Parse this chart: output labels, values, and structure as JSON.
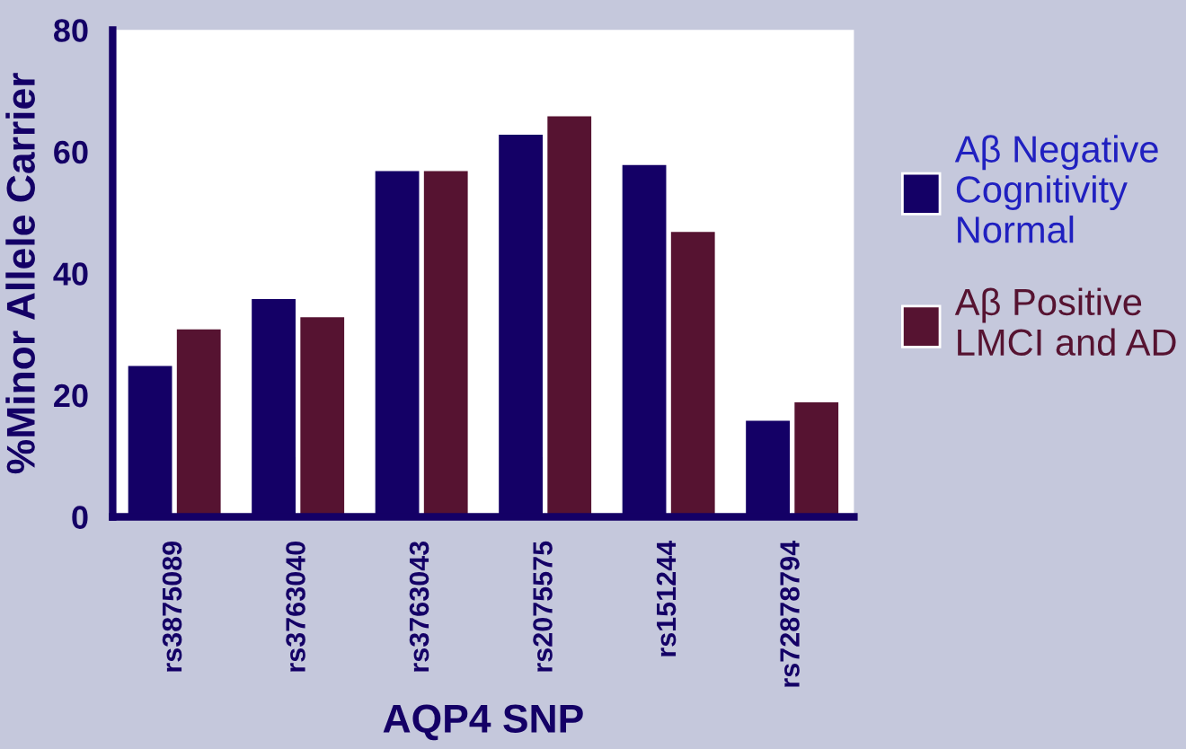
{
  "chart_data": {
    "type": "bar",
    "xlabel": "AQP4 SNP",
    "ylabel": "%Minor Allele Carrier",
    "categories": [
      "rs3875089",
      "rs3763040",
      "rs3763043",
      "rs2075575",
      "rs151244",
      "rs72878794"
    ],
    "series": [
      {
        "name": "Aβ Negative\nCognitivity\nNormal",
        "color": "#140066",
        "values": [
          25,
          36,
          57,
          63,
          58,
          16
        ]
      },
      {
        "name": "Aβ Positive\nLMCI and AD",
        "color": "#561331",
        "values": [
          31,
          33,
          57,
          66,
          47,
          19
        ]
      }
    ],
    "ylim": [
      0,
      80
    ],
    "yticks": [
      0,
      20,
      40,
      60,
      80
    ],
    "grid": false,
    "legend": "right"
  }
}
